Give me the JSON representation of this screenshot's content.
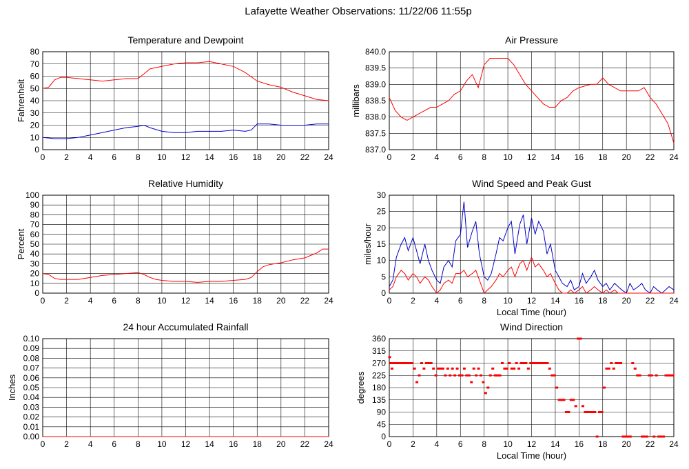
{
  "title": "Lafayette Weather Observations: 11/22/06 11:55p",
  "colors": {
    "red": "#ff0000",
    "blue": "#0000cc",
    "grid": "#000000"
  },
  "chart_data": [
    {
      "id": "temp",
      "type": "line",
      "title": "Temperature and Dewpoint",
      "xlabel": "",
      "ylabel": "Fahrenheit",
      "xlim": [
        0,
        24
      ],
      "ylim": [
        0,
        80
      ],
      "xticks": [
        0,
        2,
        4,
        6,
        8,
        10,
        12,
        14,
        16,
        18,
        20,
        22,
        24
      ],
      "yticks": [
        0,
        10,
        20,
        30,
        40,
        50,
        60,
        70,
        80
      ],
      "ytick_labels": [
        "0",
        "10",
        "20",
        "30",
        "40",
        "50",
        "60",
        "70",
        "80"
      ],
      "grid": true,
      "series": [
        {
          "color": "#ff0000",
          "x": [
            0,
            0.5,
            1,
            1.5,
            2,
            3,
            4,
            5,
            6,
            7,
            8,
            8.5,
            9,
            10,
            11,
            12,
            13,
            14,
            14.5,
            15,
            16,
            17,
            18,
            19,
            20,
            21,
            22,
            23,
            24
          ],
          "y": [
            50,
            51,
            57,
            59,
            59,
            58,
            57,
            56,
            57,
            58,
            58,
            62,
            66,
            68,
            70,
            71,
            71,
            72,
            71,
            70,
            68,
            63,
            56,
            53,
            51,
            47,
            44,
            41,
            40
          ]
        },
        {
          "color": "#0000cc",
          "x": [
            0,
            1,
            2,
            3,
            4,
            5,
            6,
            7,
            8,
            8.5,
            9,
            10,
            11,
            12,
            13,
            14,
            15,
            16,
            17,
            17.5,
            18,
            19,
            20,
            21,
            22,
            23,
            24
          ],
          "y": [
            10,
            9,
            9,
            10,
            12,
            14,
            16,
            18,
            19,
            20,
            18,
            15,
            14,
            14,
            15,
            15,
            15,
            16,
            15,
            16,
            21,
            21,
            20,
            20,
            20,
            21,
            21
          ]
        }
      ]
    },
    {
      "id": "pressure",
      "type": "line",
      "title": "Air Pressure",
      "xlabel": "",
      "ylabel": "millibars",
      "xlim": [
        0,
        24
      ],
      "ylim": [
        837.0,
        840.0
      ],
      "xticks": [
        0,
        2,
        4,
        6,
        8,
        10,
        12,
        14,
        16,
        18,
        20,
        22,
        24
      ],
      "yticks": [
        837.0,
        837.5,
        838.0,
        838.5,
        839.0,
        839.5,
        840.0
      ],
      "ytick_labels": [
        "837.0",
        "837.5",
        "838.0",
        "838.5",
        "839.0",
        "839.5",
        "840.0"
      ],
      "grid": true,
      "series": [
        {
          "color": "#ff0000",
          "x": [
            0,
            0.5,
            1,
            1.5,
            2,
            2.5,
            3,
            3.5,
            4,
            5,
            5.5,
            6,
            6.5,
            7,
            7.5,
            8,
            8.5,
            9,
            10,
            10.5,
            11,
            11.5,
            12,
            12.5,
            13,
            13.5,
            14,
            14.5,
            15,
            15.5,
            16,
            17,
            17.5,
            18,
            18.5,
            19,
            19.5,
            20,
            21,
            21.5,
            22,
            22.5,
            23,
            23.5,
            24
          ],
          "y": [
            838.6,
            838.2,
            838.0,
            837.9,
            838.0,
            838.1,
            838.2,
            838.3,
            838.3,
            838.5,
            838.7,
            838.8,
            839.1,
            839.3,
            838.9,
            839.6,
            839.8,
            839.8,
            839.8,
            839.6,
            839.3,
            839.0,
            838.8,
            838.6,
            838.4,
            838.3,
            838.3,
            838.5,
            838.6,
            838.8,
            838.9,
            839.0,
            839.0,
            839.2,
            839.0,
            838.9,
            838.8,
            838.8,
            838.8,
            838.9,
            838.6,
            838.4,
            838.1,
            837.8,
            837.2
          ]
        }
      ]
    },
    {
      "id": "humidity",
      "type": "line",
      "title": "Relative Humidity",
      "xlabel": "",
      "ylabel": "Percent",
      "xlim": [
        0,
        24
      ],
      "ylim": [
        0,
        100
      ],
      "xticks": [
        0,
        2,
        4,
        6,
        8,
        10,
        12,
        14,
        16,
        18,
        20,
        22,
        24
      ],
      "yticks": [
        0,
        10,
        20,
        30,
        40,
        50,
        60,
        70,
        80,
        90,
        100
      ],
      "ytick_labels": [
        "0",
        "10",
        "20",
        "30",
        "40",
        "50",
        "60",
        "70",
        "80",
        "90",
        "100"
      ],
      "grid": true,
      "series": [
        {
          "color": "#ff0000",
          "x": [
            0,
            0.5,
            1,
            1.5,
            2,
            3,
            4,
            5,
            6,
            7,
            8,
            8.5,
            9,
            9.5,
            10,
            11,
            12,
            13,
            14,
            15,
            16,
            17,
            17.5,
            18,
            18.5,
            19,
            20,
            21,
            22,
            23,
            23.5,
            24
          ],
          "y": [
            20,
            19,
            15,
            14,
            14,
            14,
            16,
            18,
            19,
            20,
            21,
            19,
            16,
            14,
            13,
            12,
            12,
            11,
            12,
            12,
            13,
            14,
            16,
            22,
            27,
            29,
            31,
            34,
            36,
            41,
            45,
            45
          ]
        }
      ]
    },
    {
      "id": "wind",
      "type": "line",
      "title": "Wind Speed and Peak Gust",
      "xlabel": "Local Time (hour)",
      "ylabel": "miles/hour",
      "xlim": [
        0,
        24
      ],
      "ylim": [
        0,
        30
      ],
      "xticks": [
        0,
        2,
        4,
        6,
        8,
        10,
        12,
        14,
        16,
        18,
        20,
        22,
        24
      ],
      "yticks": [
        0,
        5,
        10,
        15,
        20,
        25,
        30
      ],
      "ytick_labels": [
        "0",
        "5",
        "10",
        "15",
        "20",
        "25",
        "30"
      ],
      "grid": true,
      "series": [
        {
          "color": "#0000cc",
          "x": [
            0,
            0.3,
            0.6,
            1,
            1.3,
            1.6,
            2,
            2.3,
            2.6,
            3,
            3.3,
            3.6,
            4,
            4.3,
            4.6,
            5,
            5.3,
            5.6,
            6,
            6.3,
            6.6,
            7,
            7.3,
            7.6,
            8,
            8.3,
            8.6,
            9,
            9.3,
            9.6,
            10,
            10.3,
            10.6,
            11,
            11.3,
            11.6,
            12,
            12.3,
            12.6,
            13,
            13.3,
            13.6,
            14,
            14.3,
            14.6,
            15,
            15.3,
            15.6,
            16,
            16.3,
            16.6,
            17,
            17.3,
            17.6,
            18,
            18.3,
            18.6,
            19,
            19.3,
            19.6,
            20,
            20.3,
            20.6,
            21,
            21.3,
            21.6,
            22,
            22.3,
            22.6,
            23,
            23.3,
            23.6,
            24
          ],
          "y": [
            2,
            4,
            11,
            15,
            17,
            13,
            17,
            13,
            9,
            15,
            10,
            7,
            4,
            3,
            8,
            10,
            8,
            16,
            18,
            28,
            14,
            19,
            22,
            12,
            5,
            4,
            6,
            12,
            17,
            16,
            20,
            22,
            12,
            21,
            24,
            15,
            23,
            18,
            22,
            19,
            12,
            15,
            7,
            5,
            3,
            2,
            4,
            1,
            2,
            6,
            3,
            5,
            7,
            4,
            2,
            3,
            1,
            3,
            2,
            1,
            0,
            3,
            1,
            2,
            3,
            1,
            0,
            2,
            1,
            0,
            1,
            2,
            1
          ]
        },
        {
          "color": "#ff0000",
          "x": [
            0,
            0.3,
            0.6,
            1,
            1.3,
            1.6,
            2,
            2.3,
            2.6,
            3,
            3.3,
            3.6,
            4,
            4.3,
            4.6,
            5,
            5.3,
            5.6,
            6,
            6.3,
            6.6,
            7,
            7.3,
            7.6,
            8,
            8.3,
            8.6,
            9,
            9.3,
            9.6,
            10,
            10.3,
            10.6,
            11,
            11.3,
            11.6,
            12,
            12.3,
            12.6,
            13,
            13.3,
            13.6,
            14,
            14.3,
            14.6,
            15,
            15.3,
            15.6,
            16,
            16.3,
            16.6,
            17,
            17.3,
            17.6,
            18,
            18.3,
            18.6,
            19,
            19.3,
            19.6,
            20,
            20.5,
            21,
            22,
            23,
            24
          ],
          "y": [
            1,
            2,
            5,
            7,
            6,
            4,
            6,
            5,
            3,
            5,
            4,
            2,
            0,
            1,
            3,
            4,
            3,
            6,
            6,
            7,
            5,
            6,
            7,
            4,
            0,
            1,
            2,
            4,
            6,
            5,
            7,
            8,
            5,
            9,
            10,
            7,
            11,
            8,
            9,
            7,
            5,
            6,
            3,
            1,
            0,
            0,
            1,
            0,
            1,
            2,
            0,
            1,
            2,
            1,
            0,
            1,
            0,
            1,
            0,
            0,
            0,
            0,
            0,
            0,
            0,
            0
          ]
        }
      ]
    },
    {
      "id": "rain",
      "type": "line",
      "title": "24 hour Accumulated Rainfall",
      "xlabel": "",
      "ylabel": "Inches",
      "xlim": [
        0,
        24
      ],
      "ylim": [
        0,
        0.1
      ],
      "xticks": [
        0,
        2,
        4,
        6,
        8,
        10,
        12,
        14,
        16,
        18,
        20,
        22,
        24
      ],
      "yticks": [
        0,
        0.01,
        0.02,
        0.03,
        0.04,
        0.05,
        0.06,
        0.07,
        0.08,
        0.09,
        0.1
      ],
      "ytick_labels": [
        "0.00",
        "0.01",
        "0.02",
        "0.03",
        "0.04",
        "0.05",
        "0.06",
        "0.07",
        "0.08",
        "0.09",
        "0.10"
      ],
      "grid": true,
      "series": [
        {
          "color": "#ff0000",
          "x": [
            0,
            24
          ],
          "y": [
            0,
            0
          ]
        }
      ]
    },
    {
      "id": "winddir",
      "type": "scatter",
      "title": "Wind Direction",
      "xlabel": "Local Time (hour)",
      "ylabel": "degrees",
      "xlim": [
        0,
        24
      ],
      "ylim": [
        0,
        360
      ],
      "xticks": [
        0,
        2,
        4,
        6,
        8,
        10,
        12,
        14,
        16,
        18,
        20,
        22,
        24
      ],
      "yticks": [
        0,
        45,
        90,
        135,
        180,
        225,
        270,
        315,
        360
      ],
      "ytick_labels": [
        "0",
        "45",
        "90",
        "135",
        "180",
        "225",
        "270",
        "315",
        "360"
      ],
      "grid": true,
      "series": [
        {
          "color": "#ff0000",
          "x": [
            0,
            0.1,
            0.2,
            0.3,
            0.5,
            0.7,
            0.9,
            1.1,
            1.3,
            1.5,
            1.7,
            1.9,
            2.1,
            2.3,
            2.5,
            2.7,
            2.9,
            3.1,
            3.3,
            3.5,
            3.7,
            3.9,
            4.1,
            4.3,
            4.5,
            4.7,
            4.9,
            5.1,
            5.3,
            5.5,
            5.7,
            5.9,
            6.1,
            6.3,
            6.5,
            6.7,
            6.9,
            7.1,
            7.3,
            7.5,
            7.7,
            7.9,
            8.1,
            8.3,
            8.5,
            8.7,
            8.9,
            9.1,
            9.3,
            9.5,
            9.7,
            9.9,
            10.1,
            10.3,
            10.5,
            10.7,
            10.9,
            11.1,
            11.3,
            11.5,
            11.7,
            11.9,
            12.1,
            12.3,
            12.5,
            12.7,
            12.9,
            13.1,
            13.3,
            13.5,
            13.7,
            13.9,
            14.1,
            14.3,
            14.5,
            14.7,
            14.9,
            15.1,
            15.3,
            15.5,
            15.7,
            15.9,
            16.1,
            16.3,
            16.5,
            16.7,
            16.9,
            17.1,
            17.3,
            17.5,
            17.7,
            17.9,
            18.1,
            18.3,
            18.5,
            18.7,
            18.9,
            19.1,
            19.3,
            19.5,
            19.7,
            19.9,
            20.1,
            20.3,
            20.5,
            20.7,
            20.9,
            21.1,
            21.3,
            21.5,
            21.7,
            21.9,
            22.1,
            22.3,
            22.5,
            22.7,
            22.9,
            23.1,
            23.3,
            23.5,
            23.7,
            23.9
          ],
          "y": [
            292,
            270,
            250,
            270,
            270,
            270,
            270,
            270,
            270,
            270,
            270,
            270,
            250,
            200,
            225,
            270,
            250,
            270,
            270,
            270,
            250,
            225,
            250,
            250,
            250,
            225,
            250,
            225,
            250,
            225,
            250,
            225,
            225,
            250,
            225,
            225,
            200,
            250,
            225,
            250,
            225,
            200,
            160,
            180,
            225,
            250,
            225,
            225,
            225,
            270,
            250,
            250,
            270,
            250,
            250,
            270,
            250,
            270,
            270,
            270,
            250,
            270,
            270,
            270,
            270,
            270,
            270,
            270,
            270,
            250,
            225,
            225,
            180,
            135,
            135,
            135,
            90,
            90,
            135,
            135,
            112,
            375,
            375,
            112,
            90,
            90,
            90,
            90,
            90,
            0,
            90,
            90,
            180,
            250,
            250,
            270,
            250,
            270,
            270,
            270,
            0,
            0,
            0,
            0,
            270,
            250,
            225,
            225,
            0,
            0,
            0,
            225,
            225,
            0,
            225,
            0,
            0,
            0,
            225,
            225,
            225,
            225
          ]
        }
      ]
    }
  ]
}
